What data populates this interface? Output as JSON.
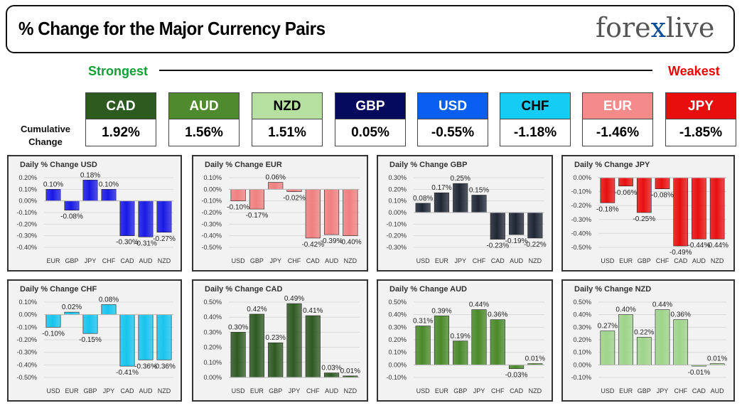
{
  "title": "% Change for the Major Currency Pairs",
  "logo": {
    "part1": "fore",
    "part2": "x",
    "part3": "live"
  },
  "legend": {
    "strongest": "Strongest",
    "weakest": "Weakest",
    "cumulative_label": "Cumulative Change"
  },
  "colors": {
    "strongest": "#11a035",
    "weakest": "#ee0000"
  },
  "cumulative": [
    {
      "currency": "CAD",
      "value": "1.92%",
      "bg": "#2d5a1f",
      "fg": "#ffffff"
    },
    {
      "currency": "AUD",
      "value": "1.56%",
      "bg": "#4f8a2f",
      "fg": "#ffffff"
    },
    {
      "currency": "NZD",
      "value": "1.51%",
      "bg": "#b5e0a0",
      "fg": "#000000"
    },
    {
      "currency": "GBP",
      "value": "0.05%",
      "bg": "#060a5c",
      "fg": "#ffffff"
    },
    {
      "currency": "USD",
      "value": "-0.55%",
      "bg": "#0a5ef0",
      "fg": "#ffffff"
    },
    {
      "currency": "CHF",
      "value": "-1.18%",
      "bg": "#14ccf4",
      "fg": "#000000"
    },
    {
      "currency": "EUR",
      "value": "-1.46%",
      "bg": "#f58a8a",
      "fg": "#ffffff"
    },
    {
      "currency": "JPY",
      "value": "-1.85%",
      "bg": "#e80e0e",
      "fg": "#ffffff"
    }
  ],
  "chart_data": [
    {
      "type": "bar",
      "title": "Daily % Change USD",
      "categories": [
        "EUR",
        "GBP",
        "JPY",
        "CHF",
        "CAD",
        "AUD",
        "NZD"
      ],
      "values": [
        0.1,
        -0.08,
        0.18,
        0.1,
        -0.3,
        -0.31,
        -0.27
      ],
      "labels": [
        "0.10%",
        "-0.08%",
        "0.18%",
        "0.10%",
        "-0.30%",
        "-0.31%",
        "-0.27%"
      ],
      "ylim": [
        -0.4,
        0.2
      ],
      "ticks": [
        "-0.40%",
        "-0.30%",
        "-0.20%",
        "-0.10%",
        "0.00%",
        "0.10%",
        "0.20%"
      ],
      "tick_values": [
        -0.4,
        -0.3,
        -0.2,
        -0.1,
        0.0,
        0.1,
        0.2
      ],
      "bar_color": "#1a1ae6"
    },
    {
      "type": "bar",
      "title": "Daily % Change EUR",
      "categories": [
        "USD",
        "GBP",
        "JPY",
        "CHF",
        "CAD",
        "AUD",
        "NZD"
      ],
      "values": [
        -0.1,
        -0.17,
        0.06,
        -0.02,
        -0.42,
        -0.39,
        -0.4
      ],
      "labels": [
        "-0.10%",
        "-0.17%",
        "0.06%",
        "-0.02%",
        "-0.42%",
        "-0.39%",
        "-0.40%"
      ],
      "ylim": [
        -0.5,
        0.1
      ],
      "ticks": [
        "-0.50%",
        "-0.40%",
        "-0.30%",
        "-0.20%",
        "-0.10%",
        "0.00%",
        "0.10%"
      ],
      "tick_values": [
        -0.5,
        -0.4,
        -0.3,
        -0.2,
        -0.1,
        0.0,
        0.1
      ],
      "bar_color": "#f08080"
    },
    {
      "type": "bar",
      "title": "Daily % Change GBP",
      "categories": [
        "USD",
        "EUR",
        "JPY",
        "CHF",
        "CAD",
        "AUD",
        "NZD"
      ],
      "values": [
        0.08,
        0.17,
        0.25,
        0.15,
        -0.23,
        -0.19,
        -0.22
      ],
      "labels": [
        "0.08%",
        "0.17%",
        "0.25%",
        "0.15%",
        "-0.23%",
        "-0.19%",
        "-0.22%"
      ],
      "ylim": [
        -0.3,
        0.3
      ],
      "ticks": [
        "-0.30%",
        "-0.20%",
        "-0.10%",
        "0.00%",
        "0.10%",
        "0.20%",
        "0.30%"
      ],
      "tick_values": [
        -0.3,
        -0.2,
        -0.1,
        0.0,
        0.1,
        0.2,
        0.3
      ],
      "bar_color": "#1f2735"
    },
    {
      "type": "bar",
      "title": "Daily % Change JPY",
      "categories": [
        "USD",
        "EUR",
        "GBP",
        "CHF",
        "CAD",
        "AUD",
        "NZD"
      ],
      "values": [
        -0.18,
        -0.06,
        -0.25,
        -0.08,
        -0.49,
        -0.44,
        -0.44
      ],
      "labels": [
        "-0.18%",
        "-0.06%",
        "-0.25%",
        "-0.08%",
        "-0.49%",
        "-0.44%",
        "-0.44%"
      ],
      "ylim": [
        -0.5,
        0.0
      ],
      "ticks": [
        "-0.50%",
        "-0.40%",
        "-0.30%",
        "-0.20%",
        "-0.10%",
        "0.00%"
      ],
      "tick_values": [
        -0.5,
        -0.4,
        -0.3,
        -0.2,
        -0.1,
        0.0
      ],
      "bar_color": "#e81010"
    },
    {
      "type": "bar",
      "title": "Daily % Change CHF",
      "categories": [
        "USD",
        "EUR",
        "GBP",
        "JPY",
        "CAD",
        "AUD",
        "NZD"
      ],
      "values": [
        -0.1,
        0.02,
        -0.15,
        0.08,
        -0.41,
        -0.36,
        -0.36
      ],
      "labels": [
        "-0.10%",
        "0.02%",
        "-0.15%",
        "0.08%",
        "-0.41%",
        "-0.36%",
        "-0.36%"
      ],
      "ylim": [
        -0.5,
        0.1
      ],
      "ticks": [
        "-0.50%",
        "-0.40%",
        "-0.30%",
        "-0.20%",
        "-0.10%",
        "0.00%",
        "0.10%"
      ],
      "tick_values": [
        -0.5,
        -0.4,
        -0.3,
        -0.2,
        -0.1,
        0.0,
        0.1
      ],
      "bar_color": "#18c4ef"
    },
    {
      "type": "bar",
      "title": "Daily % Change CAD",
      "categories": [
        "USD",
        "EUR",
        "GBP",
        "JPY",
        "CHF",
        "AUD",
        "NZD"
      ],
      "values": [
        0.3,
        0.42,
        0.23,
        0.49,
        0.41,
        0.03,
        0.01
      ],
      "labels": [
        "0.30%",
        "0.42%",
        "0.23%",
        "0.49%",
        "0.41%",
        "0.03%",
        "0.01%"
      ],
      "ylim": [
        0.0,
        0.5
      ],
      "ticks": [
        "0.00%",
        "0.10%",
        "0.20%",
        "0.30%",
        "0.40%",
        "0.50%"
      ],
      "tick_values": [
        0.0,
        0.1,
        0.2,
        0.3,
        0.4,
        0.5
      ],
      "bar_color": "#2f5a23"
    },
    {
      "type": "bar",
      "title": "Daily % Change AUD",
      "categories": [
        "USD",
        "EUR",
        "GBP",
        "JPY",
        "CHF",
        "CAD",
        "NZD"
      ],
      "values": [
        0.31,
        0.39,
        0.19,
        0.44,
        0.36,
        -0.03,
        0.01
      ],
      "labels": [
        "0.31%",
        "0.39%",
        "0.19%",
        "0.44%",
        "0.36%",
        "-0.03%",
        "0.01%"
      ],
      "ylim": [
        -0.1,
        0.5
      ],
      "ticks": [
        "-0.10%",
        "0.00%",
        "0.10%",
        "0.20%",
        "0.30%",
        "0.40%",
        "0.50%"
      ],
      "tick_values": [
        -0.1,
        0.0,
        0.1,
        0.2,
        0.3,
        0.4,
        0.5
      ],
      "bar_color": "#4a8a2a"
    },
    {
      "type": "bar",
      "title": "Daily % Change NZD",
      "categories": [
        "USD",
        "EUR",
        "GBP",
        "JPY",
        "CHF",
        "CAD",
        "AUD"
      ],
      "values": [
        0.27,
        0.4,
        0.22,
        0.44,
        0.36,
        -0.01,
        0.01
      ],
      "labels": [
        "0.27%",
        "0.40%",
        "0.22%",
        "0.44%",
        "0.36%",
        "-0.01%",
        "0.01%"
      ],
      "ylim": [
        -0.1,
        0.5
      ],
      "ticks": [
        "-0.10%",
        "0.00%",
        "0.10%",
        "0.20%",
        "0.30%",
        "0.40%",
        "0.50%"
      ],
      "tick_values": [
        -0.1,
        0.0,
        0.1,
        0.2,
        0.3,
        0.4,
        0.5
      ],
      "bar_color": "#9ed48a"
    }
  ]
}
